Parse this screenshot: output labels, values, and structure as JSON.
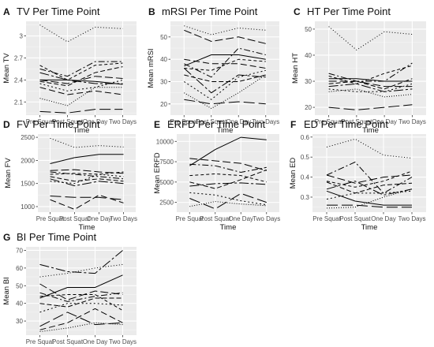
{
  "chart_data": [
    {
      "panel": "A",
      "type": "line",
      "title": "TV Per Time Point",
      "xlabel": "Time",
      "ylabel": "Mean TV",
      "categories": [
        "Pre Squat",
        "Post Squat",
        "One Day",
        "Two Days"
      ],
      "yticks": [
        2.1,
        2.4,
        2.7,
        3.0
      ],
      "ylim": [
        1.92,
        3.2
      ],
      "series": [
        {
          "values": [
            3.15,
            2.92,
            3.12,
            3.1
          ],
          "dash": "1,2.5"
        },
        {
          "values": [
            2.4,
            2.4,
            2.38,
            2.34
          ],
          "dash": ""
        },
        {
          "values": [
            2.4,
            2.35,
            2.45,
            2.42
          ],
          "dash": "10,4"
        },
        {
          "values": [
            2.55,
            2.45,
            2.65,
            2.65
          ],
          "dash": "8,3,2,3"
        },
        {
          "values": [
            2.6,
            2.4,
            2.6,
            2.63
          ],
          "dash": "4,3"
        },
        {
          "values": [
            2.38,
            2.32,
            2.5,
            2.58
          ],
          "dash": "6,3"
        },
        {
          "values": [
            2.35,
            2.25,
            2.3,
            2.4
          ],
          "dash": "2,3"
        },
        {
          "values": [
            2.3,
            2.2,
            2.25,
            2.2
          ],
          "dash": "8,4"
        },
        {
          "values": [
            2.15,
            2.05,
            2.3,
            2.3
          ],
          "dash": "1,2"
        },
        {
          "values": [
            2.5,
            2.4,
            2.35,
            2.35
          ],
          "dash": "12,3,3,3"
        },
        {
          "values": [
            1.97,
            1.95,
            2.0,
            2.0
          ],
          "dash": "14,5"
        }
      ]
    },
    {
      "panel": "B",
      "type": "line",
      "title": "mRSI Per Time Point",
      "xlabel": "Time",
      "ylabel": "Mean mRSI",
      "categories": [
        "Pre Squat",
        "Post Squat",
        "One Day",
        "Two Days"
      ],
      "yticks": [
        20,
        30,
        40,
        50
      ],
      "ylim": [
        15,
        57
      ],
      "series": [
        {
          "values": [
            55,
            51,
            54,
            53
          ],
          "dash": "1,2.5"
        },
        {
          "values": [
            53,
            48,
            50,
            47
          ],
          "dash": "10,4"
        },
        {
          "values": [
            37,
            42,
            42,
            40
          ],
          "dash": ""
        },
        {
          "values": [
            38,
            32,
            45,
            42
          ],
          "dash": "8,3,2,3"
        },
        {
          "values": [
            36,
            35,
            40,
            39
          ],
          "dash": "4,3"
        },
        {
          "values": [
            36,
            25,
            33,
            32
          ],
          "dash": "12,3,3,3"
        },
        {
          "values": [
            33,
            30,
            30,
            33
          ],
          "dash": "6,3"
        },
        {
          "values": [
            30,
            22,
            32,
            35
          ],
          "dash": "2,3"
        },
        {
          "values": [
            25,
            18,
            25,
            33
          ],
          "dash": "1,2"
        },
        {
          "values": [
            40,
            38,
            38,
            36
          ],
          "dash": "8,4"
        },
        {
          "values": [
            22,
            20,
            21,
            20
          ],
          "dash": "14,5"
        }
      ]
    },
    {
      "panel": "C",
      "type": "line",
      "title": "HT Per Time Point",
      "xlabel": "Time",
      "ylabel": "Mean HT",
      "categories": [
        "Pre Squat",
        "Post Squat",
        "One Day",
        "Two Days"
      ],
      "yticks": [
        20,
        30,
        40,
        50
      ],
      "ylim": [
        17,
        53
      ],
      "series": [
        {
          "values": [
            51,
            42,
            49,
            48
          ],
          "dash": "1,2.5"
        },
        {
          "values": [
            33,
            30,
            30,
            37
          ],
          "dash": "8,3,2,3"
        },
        {
          "values": [
            32,
            29,
            33,
            36
          ],
          "dash": "4,3"
        },
        {
          "values": [
            31,
            31,
            30,
            30
          ],
          "dash": ""
        },
        {
          "values": [
            30,
            30,
            28,
            28
          ],
          "dash": "10,4"
        },
        {
          "values": [
            29,
            30,
            27,
            31
          ],
          "dash": "6,3"
        },
        {
          "values": [
            28,
            29,
            26,
            27
          ],
          "dash": "12,3,3,3"
        },
        {
          "values": [
            27,
            26,
            26,
            29
          ],
          "dash": "2,3"
        },
        {
          "values": [
            26,
            27,
            24,
            25
          ],
          "dash": "1,2"
        },
        {
          "values": [
            20,
            19,
            20,
            21
          ],
          "dash": "14,5"
        }
      ]
    },
    {
      "panel": "D",
      "type": "line",
      "title": "FV Per Time Point",
      "xlabel": "Time",
      "ylabel": "Mean FV",
      "categories": [
        "Pre Squat",
        "Post Squat",
        "One Day",
        "Two Days"
      ],
      "yticks": [
        1000,
        1500,
        2000,
        2500
      ],
      "ylim": [
        880,
        2570
      ],
      "series": [
        {
          "values": [
            2480,
            2280,
            2320,
            2290
          ],
          "dash": "1,2.5"
        },
        {
          "values": [
            1930,
            2060,
            2130,
            2130
          ],
          "dash": ""
        },
        {
          "values": [
            1780,
            1800,
            1750,
            1720
          ],
          "dash": "10,4"
        },
        {
          "values": [
            1750,
            1700,
            1650,
            1600
          ],
          "dash": "8,3,2,3"
        },
        {
          "values": [
            1700,
            1720,
            1700,
            1750
          ],
          "dash": "4,3"
        },
        {
          "values": [
            1650,
            1550,
            1600,
            1550
          ],
          "dash": "6,3"
        },
        {
          "values": [
            1600,
            1450,
            1550,
            1500
          ],
          "dash": "12,3,3,3"
        },
        {
          "values": [
            1550,
            1500,
            1700,
            1650
          ],
          "dash": "2,3"
        },
        {
          "values": [
            1230,
            1200,
            1200,
            1150
          ],
          "dash": "14,5"
        },
        {
          "values": [
            1150,
            940,
            1250,
            1080
          ],
          "dash": "8,4"
        }
      ]
    },
    {
      "panel": "E",
      "type": "line",
      "title": "ERFD Per Time Point",
      "xlabel": "Time",
      "ylabel": "Mean ERFD",
      "categories": [
        "Pre Squat",
        "Post Squat",
        "One Day",
        "Two Days"
      ],
      "yticks": [
        2500,
        5000,
        7500,
        10000
      ],
      "ylim": [
        1300,
        10900
      ],
      "series": [
        {
          "values": [
            7000,
            9000,
            10500,
            10200
          ],
          "dash": ""
        },
        {
          "values": [
            7900,
            7600,
            7300,
            6400
          ],
          "dash": "10,4"
        },
        {
          "values": [
            7200,
            7000,
            6200,
            6800
          ],
          "dash": "8,3,2,3"
        },
        {
          "values": [
            5800,
            6000,
            5800,
            5000
          ],
          "dash": "4,3"
        },
        {
          "values": [
            5000,
            4200,
            5300,
            6500
          ],
          "dash": "6,3"
        },
        {
          "values": [
            4500,
            4800,
            4900,
            4700
          ],
          "dash": "12,3,3,3"
        },
        {
          "values": [
            3700,
            3400,
            2700,
            2200
          ],
          "dash": "2,3"
        },
        {
          "values": [
            3000,
            1700,
            3600,
            2500
          ],
          "dash": "14,5"
        },
        {
          "values": [
            2000,
            2600,
            2300,
            2100
          ],
          "dash": "1,2"
        }
      ]
    },
    {
      "panel": "F",
      "type": "line",
      "title": "ED Per Time Point",
      "xlabel": "Time",
      "ylabel": "Mean ED",
      "categories": [
        "Pre Squat",
        "Post Squat",
        "One Day",
        "Two Days"
      ],
      "yticks": [
        0.3,
        0.4,
        0.5,
        0.6
      ],
      "ylim": [
        0.225,
        0.615
      ],
      "series": [
        {
          "values": [
            0.55,
            0.59,
            0.51,
            0.495
          ],
          "dash": "1,2.5"
        },
        {
          "values": [
            0.41,
            0.475,
            0.32,
            0.4
          ],
          "dash": "8,3,2,3"
        },
        {
          "values": [
            0.41,
            0.37,
            0.4,
            0.41
          ],
          "dash": "10,4"
        },
        {
          "values": [
            0.38,
            0.35,
            0.38,
            0.43
          ],
          "dash": "4,3"
        },
        {
          "values": [
            0.375,
            0.32,
            0.36,
            0.37
          ],
          "dash": "6,3"
        },
        {
          "values": [
            0.34,
            0.38,
            0.31,
            0.34
          ],
          "dash": "12,3,3,3"
        },
        {
          "values": [
            0.33,
            0.28,
            0.26,
            0.26
          ],
          "dash": ""
        },
        {
          "values": [
            0.29,
            0.32,
            0.32,
            0.33
          ],
          "dash": "2,3"
        },
        {
          "values": [
            0.26,
            0.26,
            0.25,
            0.25
          ],
          "dash": "14,5"
        },
        {
          "values": [
            0.245,
            0.25,
            0.3,
            0.34
          ],
          "dash": "1,2"
        }
      ]
    },
    {
      "panel": "G",
      "type": "line",
      "title": "BI Per Time Point",
      "xlabel": "Time",
      "ylabel": "Mean BI",
      "categories": [
        "Pre Squat",
        "Post Squat",
        "One Day",
        "Two Days"
      ],
      "yticks": [
        30,
        40,
        50,
        60,
        70
      ],
      "ylim": [
        22,
        72
      ],
      "series": [
        {
          "values": [
            62,
            58,
            57,
            70
          ],
          "dash": "12,3,3,3"
        },
        {
          "values": [
            55,
            57,
            60,
            62
          ],
          "dash": "1,2.5"
        },
        {
          "values": [
            43,
            49,
            49,
            56
          ],
          "dash": ""
        },
        {
          "values": [
            51,
            42,
            47,
            45
          ],
          "dash": "10,4"
        },
        {
          "values": [
            46,
            41,
            44,
            46
          ],
          "dash": "8,3,2,3"
        },
        {
          "values": [
            44,
            45,
            45,
            36
          ],
          "dash": "4,3"
        },
        {
          "values": [
            40,
            38,
            43,
            43
          ],
          "dash": "6,3"
        },
        {
          "values": [
            35,
            40,
            40,
            39
          ],
          "dash": "2,3"
        },
        {
          "values": [
            27,
            35,
            28,
            29
          ],
          "dash": "14,5"
        },
        {
          "values": [
            25,
            29,
            37,
            29
          ],
          "dash": "8,4"
        },
        {
          "values": [
            24,
            26,
            29,
            28
          ],
          "dash": "1,2"
        }
      ]
    }
  ]
}
